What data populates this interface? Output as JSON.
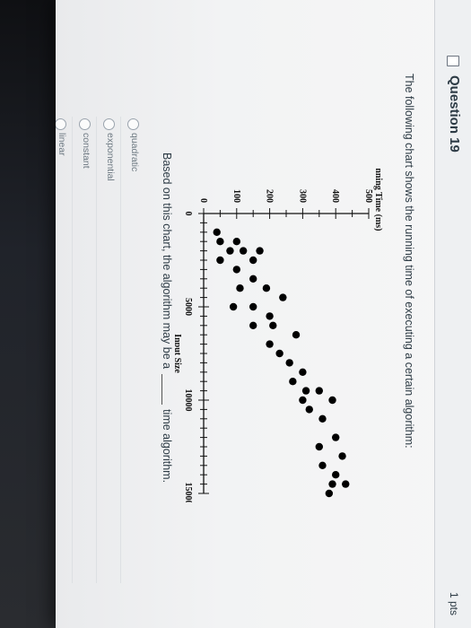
{
  "question": {
    "title": "Question 19",
    "points": "1 pts",
    "prompt": "The following chart shows the running time of executing a certain algorithm:",
    "after_chart_before_blank": "Based on this chart, the algorithm may be a",
    "after_chart_after_blank": "time algorithm.",
    "answers": [
      "quadratic",
      "exponential",
      "constant",
      "linear"
    ]
  },
  "chart_data": {
    "type": "scatter",
    "ylabel": "Running Time (ms)",
    "xlabel": "Input Size",
    "x_ticks": [
      "0",
      "5000",
      "10000",
      "15000"
    ],
    "y_ticks": [
      "0",
      "100",
      "200",
      "300",
      "400",
      "500"
    ],
    "xlim": [
      0,
      15000
    ],
    "ylim": [
      0,
      500
    ],
    "points": [
      {
        "x": 1000,
        "y": 40
      },
      {
        "x": 1500,
        "y": 100
      },
      {
        "x": 1500,
        "y": 50
      },
      {
        "x": 2000,
        "y": 170
      },
      {
        "x": 2000,
        "y": 120
      },
      {
        "x": 2000,
        "y": 80
      },
      {
        "x": 2500,
        "y": 50
      },
      {
        "x": 2500,
        "y": 150
      },
      {
        "x": 3000,
        "y": 100
      },
      {
        "x": 3500,
        "y": 150
      },
      {
        "x": 4000,
        "y": 190
      },
      {
        "x": 4000,
        "y": 110
      },
      {
        "x": 4500,
        "y": 240
      },
      {
        "x": 5000,
        "y": 150
      },
      {
        "x": 5000,
        "y": 90
      },
      {
        "x": 5500,
        "y": 200
      },
      {
        "x": 6000,
        "y": 210
      },
      {
        "x": 6000,
        "y": 150
      },
      {
        "x": 6500,
        "y": 280
      },
      {
        "x": 7000,
        "y": 200
      },
      {
        "x": 7500,
        "y": 230
      },
      {
        "x": 8000,
        "y": 260
      },
      {
        "x": 8500,
        "y": 300
      },
      {
        "x": 9000,
        "y": 270
      },
      {
        "x": 9500,
        "y": 310
      },
      {
        "x": 9500,
        "y": 350
      },
      {
        "x": 10000,
        "y": 300
      },
      {
        "x": 10000,
        "y": 390
      },
      {
        "x": 10500,
        "y": 320
      },
      {
        "x": 11000,
        "y": 360
      },
      {
        "x": 12000,
        "y": 400
      },
      {
        "x": 12500,
        "y": 350
      },
      {
        "x": 13000,
        "y": 420
      },
      {
        "x": 13500,
        "y": 360
      },
      {
        "x": 14000,
        "y": 400
      },
      {
        "x": 14500,
        "y": 430
      },
      {
        "x": 14500,
        "y": 390
      },
      {
        "x": 15000,
        "y": 380
      }
    ]
  }
}
